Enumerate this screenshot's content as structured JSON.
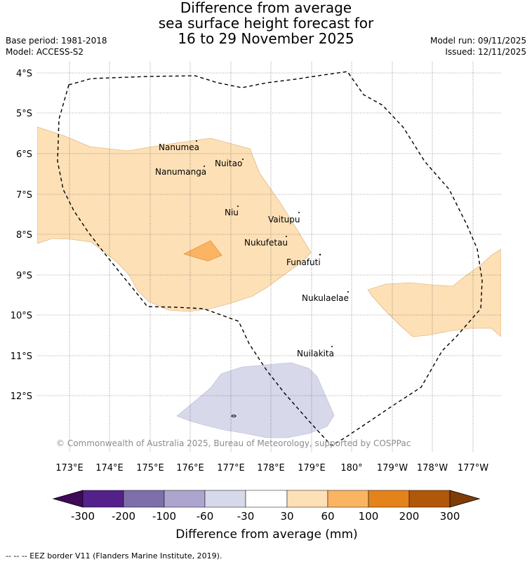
{
  "title": {
    "line1": "Difference from average",
    "line2": "sea surface height forecast for",
    "line3": "16 to 29 November 2025"
  },
  "meta": {
    "base_period": "Base period: 1981-2018",
    "model": "Model: ACCESS-S2",
    "model_run": "Model run: 09/11/2025",
    "issued": "Issued: 12/11/2025"
  },
  "map": {
    "lat_labels": [
      "4°S",
      "5°S",
      "6°S",
      "7°S",
      "8°S",
      "9°S",
      "10°S",
      "11°S",
      "12°S"
    ],
    "lon_labels": [
      "173°E",
      "174°E",
      "175°E",
      "176°E",
      "177°E",
      "178°E",
      "179°E",
      "180°",
      "179°W",
      "178°W",
      "177°W"
    ],
    "places": [
      {
        "name": "Nanumea"
      },
      {
        "name": "Nuitao"
      },
      {
        "name": "Nanumanga"
      },
      {
        "name": "Niu"
      },
      {
        "name": "Vaitupu"
      },
      {
        "name": "Nukufetau"
      },
      {
        "name": "Funafuti"
      },
      {
        "name": "Nukulaelae"
      },
      {
        "name": "Nuilakita"
      }
    ],
    "copyright": "© Commonwealth of Australia 2025, Bureau of Meteorology, supported by COSPPac"
  },
  "colorbar": {
    "ticks": [
      "-300",
      "-200",
      "-100",
      "-60",
      "-30",
      "30",
      "60",
      "100",
      "200",
      "300"
    ],
    "colors": [
      "#3f0a57",
      "#54218a",
      "#7e6fab",
      "#ada5ce",
      "#d7d8ea",
      "#ffffff",
      "#fde0b6",
      "#fbb462",
      "#e4831a",
      "#b05709",
      "#7e3c06"
    ],
    "title": "Difference from average (mm)"
  },
  "footer": "--  --  -- EEZ border V11 (Flanders Marine Institute, 2019)."
}
